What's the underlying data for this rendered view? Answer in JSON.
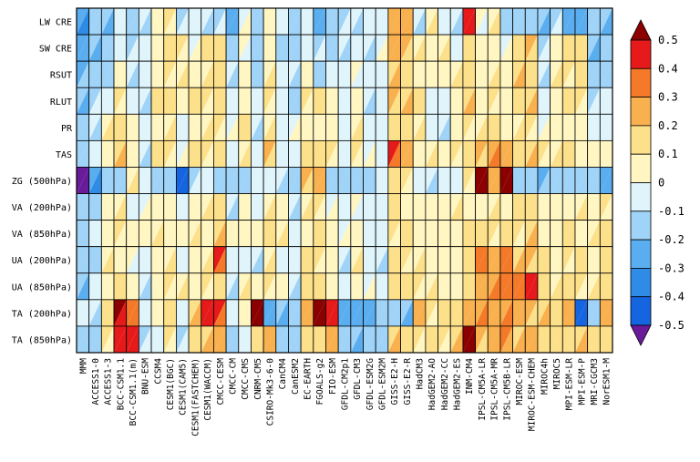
{
  "chart_data": {
    "type": "heatmap",
    "title": "",
    "xlabel": "",
    "ylabel": "",
    "models": [
      "MMM",
      "ACCESS1-0",
      "ACCESS1-3",
      "BCC-CSM1.1",
      "BCC-CSM1.1(m)",
      "BNU-ESM",
      "CCSM4",
      "CESM1(BGC)",
      "CESM1(CAM5)",
      "CESM1(FASTCHEM)",
      "CESM1(WACCM)",
      "CMCC-CESM",
      "CMCC-CM",
      "CMCC-CMS",
      "CNRM-CM5",
      "CSIRO-Mk3-6-0",
      "CanCM4",
      "CanESM2",
      "EC-EARTH",
      "FGOALS-g2",
      "FIO-ESM",
      "GFDL-CM2p1",
      "GFDL-CM3",
      "GFDL-ESM2G",
      "GFDL-ESM2M",
      "GISS-E2-H",
      "GISS-E2-R",
      "HadCM3",
      "HadGEM2-AO",
      "HadGEM2-CC",
      "HadGEM2-ES",
      "INM-CM4",
      "IPSL-CM5A-LR",
      "IPSL-CM5A-MR",
      "IPSL-CM5B-LR",
      "MIROC-ESM",
      "MIROC-ESM-CHEM",
      "MIROC4h",
      "MIROC5",
      "MPI-ESM-LR",
      "MPI-ESM-P",
      "MRI-CGCM3",
      "NorESM1-M"
    ],
    "variables": [
      "LW CRE",
      "SW CRE",
      "RSUT",
      "RLUT",
      "PR",
      "TAS",
      "ZG (500hPa)",
      "VA (200hPa)",
      "VA (850hPa)",
      "UA (200hPa)",
      "UA (850hPa)",
      "TA (200hPa)",
      "TA (850hPa)"
    ],
    "colorbar": {
      "levels": [
        -0.5,
        -0.4,
        -0.3,
        -0.2,
        -0.1,
        0,
        0.1,
        0.2,
        0.3,
        0.4,
        0.5
      ],
      "tick_labels": [
        "0.5",
        "0.4",
        "0.3",
        "0.2",
        "0.1",
        "0",
        "-0.1",
        "-0.2",
        "-0.3",
        "-0.4",
        "-0.5"
      ],
      "colors": [
        "#6a1b9a",
        "#1565e0",
        "#2e8be6",
        "#5aaef0",
        "#9fd3f7",
        "#dff4fb",
        "#fff6c2",
        "#fde08a",
        "#f9b04f",
        "#f47a2a",
        "#e61a1a",
        "#8b0000"
      ]
    },
    "values": [
      [
        -0.25,
        -0.15,
        -0.2,
        -0.08,
        -0.18,
        -0.05,
        0.05,
        0.12,
        -0.12,
        -0.08,
        -0.05,
        -0.12,
        -0.22,
        -0.06,
        -0.18,
        0.06,
        -0.1,
        -0.14,
        -0.08,
        -0.22,
        -0.14,
        -0.12,
        -0.08,
        -0.1,
        -0.06,
        0.28,
        0.26,
        -0.1,
        0.06,
        -0.04,
        -0.1,
        0.42,
        0.02,
        0.04,
        -0.14,
        -0.12,
        -0.2,
        -0.18,
        -0.14,
        -0.22,
        -0.22,
        -0.16,
        -0.2
      ],
      [
        -0.25,
        -0.15,
        -0.18,
        -0.06,
        -0.14,
        -0.1,
        0.08,
        0.16,
        0.12,
        -0.04,
        0.12,
        0.16,
        -0.14,
        0.0,
        -0.18,
        0.06,
        -0.12,
        -0.14,
        -0.06,
        -0.16,
        -0.12,
        -0.1,
        -0.06,
        -0.08,
        -0.06,
        0.26,
        0.24,
        0.08,
        0.06,
        0.04,
        -0.06,
        0.16,
        0.06,
        0.06,
        -0.06,
        0.18,
        0.22,
        -0.12,
        0.08,
        0.12,
        0.1,
        -0.16,
        -0.18
      ],
      [
        -0.22,
        -0.14,
        -0.12,
        0.04,
        -0.08,
        -0.1,
        0.06,
        0.12,
        0.08,
        0.04,
        0.08,
        0.14,
        -0.08,
        0.06,
        -0.12,
        0.08,
        -0.08,
        -0.1,
        0.06,
        -0.12,
        -0.08,
        -0.06,
        0.04,
        -0.06,
        -0.04,
        0.18,
        0.16,
        0.08,
        0.06,
        0.06,
        0.04,
        0.14,
        0.06,
        0.08,
        0.04,
        0.16,
        0.18,
        -0.08,
        0.08,
        0.1,
        0.1,
        -0.12,
        -0.12
      ],
      [
        -0.2,
        -0.16,
        -0.1,
        0.12,
        -0.06,
        -0.08,
        0.1,
        0.12,
        0.06,
        0.1,
        0.12,
        0.12,
        -0.06,
        0.08,
        -0.08,
        0.1,
        -0.1,
        -0.12,
        0.14,
        0.1,
        0.06,
        -0.1,
        0.08,
        -0.08,
        -0.06,
        0.2,
        0.18,
        0.1,
        -0.04,
        -0.04,
        0.04,
        0.14,
        0.08,
        0.12,
        0.06,
        0.14,
        0.16,
        -0.08,
        0.06,
        0.12,
        0.1,
        -0.12,
        -0.1
      ],
      [
        -0.18,
        -0.1,
        0.06,
        0.1,
        0.06,
        -0.06,
        0.08,
        0.08,
        -0.06,
        0.08,
        0.08,
        0.1,
        -0.04,
        0.1,
        -0.06,
        0.08,
        -0.06,
        -0.06,
        0.08,
        0.06,
        0.04,
        -0.06,
        0.08,
        -0.04,
        -0.04,
        0.16,
        0.14,
        0.06,
        -0.06,
        -0.06,
        0.06,
        0.1,
        0.06,
        0.1,
        0.08,
        0.08,
        0.12,
        -0.06,
        0.08,
        0.08,
        0.06,
        -0.06,
        -0.1
      ],
      [
        -0.12,
        -0.08,
        0.06,
        0.14,
        0.04,
        -0.08,
        0.1,
        0.1,
        -0.06,
        0.1,
        0.14,
        0.12,
        -0.06,
        0.06,
        -0.06,
        0.2,
        -0.06,
        -0.06,
        0.12,
        0.1,
        0.12,
        -0.06,
        0.12,
        -0.06,
        -0.06,
        0.42,
        0.22,
        0.08,
        0.06,
        0.06,
        0.1,
        0.14,
        0.22,
        0.24,
        0.26,
        0.16,
        0.18,
        0.1,
        0.06,
        0.12,
        0.08,
        0.06,
        0.04
      ],
      [
        -0.55,
        -0.3,
        -0.2,
        -0.12,
        0.06,
        -0.08,
        -0.12,
        -0.18,
        -0.42,
        -0.12,
        -0.08,
        -0.14,
        -0.2,
        -0.12,
        -0.1,
        -0.06,
        -0.08,
        -0.14,
        0.22,
        0.2,
        -0.12,
        -0.12,
        -0.14,
        -0.12,
        -0.1,
        0.18,
        0.12,
        -0.1,
        -0.1,
        -0.08,
        -0.08,
        0.1,
        0.52,
        0.24,
        0.54,
        -0.14,
        -0.12,
        -0.22,
        -0.14,
        -0.18,
        -0.16,
        -0.12,
        -0.3
      ],
      [
        -0.18,
        -0.12,
        0.06,
        0.08,
        -0.06,
        -0.06,
        0.06,
        0.08,
        -0.06,
        0.08,
        0.08,
        0.16,
        -0.1,
        0.06,
        -0.06,
        0.08,
        0.04,
        -0.1,
        0.08,
        0.1,
        -0.06,
        -0.06,
        0.04,
        -0.06,
        -0.04,
        0.1,
        0.08,
        0.06,
        0.06,
        0.04,
        0.06,
        0.08,
        0.06,
        0.08,
        0.08,
        0.1,
        0.12,
        0.06,
        0.06,
        0.08,
        0.06,
        0.04,
        0.1
      ],
      [
        -0.16,
        -0.1,
        0.06,
        0.1,
        0.06,
        0.04,
        0.08,
        0.08,
        0.06,
        0.08,
        0.06,
        0.14,
        0.06,
        0.06,
        0.04,
        0.14,
        0.06,
        -0.08,
        0.08,
        0.12,
        0.08,
        -0.06,
        0.06,
        -0.04,
        -0.04,
        0.1,
        0.12,
        0.08,
        0.06,
        0.06,
        0.08,
        0.1,
        0.12,
        0.14,
        0.12,
        0.12,
        0.14,
        0.08,
        0.06,
        0.1,
        0.08,
        0.04,
        0.12
      ],
      [
        -0.2,
        -0.12,
        0.06,
        0.08,
        0.04,
        -0.06,
        0.06,
        0.08,
        -0.06,
        0.06,
        0.08,
        0.42,
        -0.1,
        -0.06,
        -0.06,
        0.08,
        -0.06,
        -0.08,
        0.1,
        0.12,
        0.06,
        -0.08,
        0.06,
        -0.06,
        -0.06,
        0.14,
        0.12,
        0.08,
        0.06,
        0.06,
        0.06,
        0.14,
        0.3,
        0.28,
        0.36,
        0.18,
        0.2,
        0.12,
        0.06,
        0.12,
        0.1,
        0.06,
        0.12
      ],
      [
        -0.18,
        -0.1,
        0.06,
        0.1,
        0.06,
        -0.06,
        0.06,
        0.1,
        0.06,
        0.08,
        0.1,
        0.14,
        -0.08,
        0.06,
        0.06,
        0.14,
        0.06,
        -0.1,
        0.12,
        0.14,
        0.08,
        -0.06,
        0.06,
        -0.06,
        -0.04,
        0.16,
        0.14,
        0.1,
        0.08,
        0.06,
        0.08,
        0.14,
        0.24,
        0.26,
        0.3,
        0.36,
        0.42,
        0.16,
        0.08,
        0.14,
        0.12,
        0.08,
        0.14
      ],
      [
        -0.1,
        -0.06,
        0.1,
        0.52,
        0.3,
        -0.08,
        0.06,
        0.14,
        -0.06,
        0.14,
        0.42,
        0.4,
        -0.08,
        0.06,
        0.54,
        -0.28,
        -0.2,
        -0.16,
        0.24,
        0.5,
        0.46,
        -0.22,
        -0.3,
        -0.26,
        -0.2,
        -0.18,
        -0.16,
        0.2,
        0.1,
        0.1,
        0.14,
        0.26,
        0.28,
        0.24,
        0.26,
        0.2,
        0.22,
        0.18,
        0.14,
        0.2,
        -0.46,
        -0.14,
        0.22
      ],
      [
        -0.2,
        -0.12,
        0.1,
        0.46,
        0.44,
        -0.16,
        -0.1,
        0.12,
        -0.12,
        0.16,
        0.18,
        0.2,
        -0.14,
        -0.1,
        0.14,
        0.22,
        -0.12,
        -0.14,
        0.16,
        0.18,
        0.2,
        -0.16,
        -0.18,
        -0.14,
        -0.12,
        0.16,
        0.12,
        0.14,
        0.1,
        0.1,
        0.14,
        0.52,
        0.2,
        0.24,
        0.3,
        0.18,
        0.2,
        0.16,
        0.12,
        0.18,
        0.14,
        0.12,
        0.16
      ]
    ]
  }
}
